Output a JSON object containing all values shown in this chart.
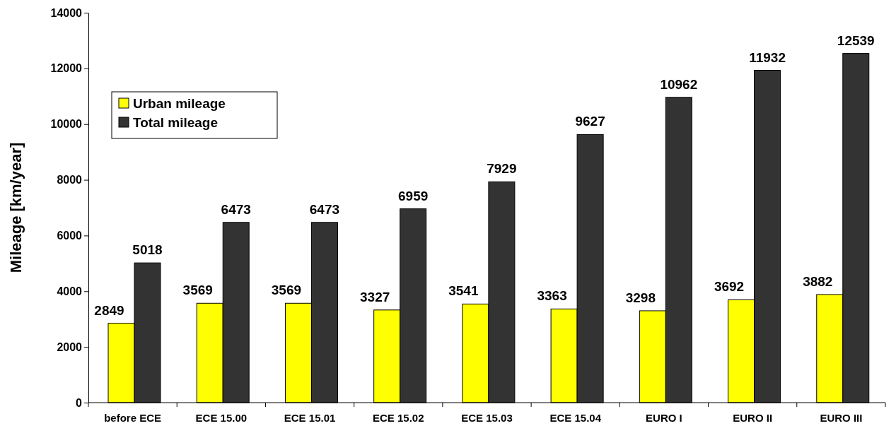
{
  "chart_data": {
    "type": "bar",
    "ylabel": "Mileage [km/year]",
    "categories": [
      "before ECE",
      "ECE 15.00",
      "ECE 15.01",
      "ECE 15.02",
      "ECE 15.03",
      "ECE 15.04",
      "EURO I",
      "EURO II",
      "EURO III"
    ],
    "series": [
      {
        "name": "Urban mileage",
        "color": "#ffff00",
        "values": [
          2849,
          3569,
          3569,
          3327,
          3541,
          3363,
          3298,
          3692,
          3882
        ]
      },
      {
        "name": "Total mileage",
        "color": "#333333",
        "values": [
          5018,
          6473,
          6473,
          6959,
          7929,
          9627,
          10962,
          11932,
          12539
        ]
      }
    ],
    "ylim": [
      0,
      14000
    ],
    "yticks": [
      0,
      2000,
      4000,
      6000,
      8000,
      10000,
      12000,
      14000
    ],
    "data_labels": true,
    "legend": "top left",
    "grid": false
  }
}
